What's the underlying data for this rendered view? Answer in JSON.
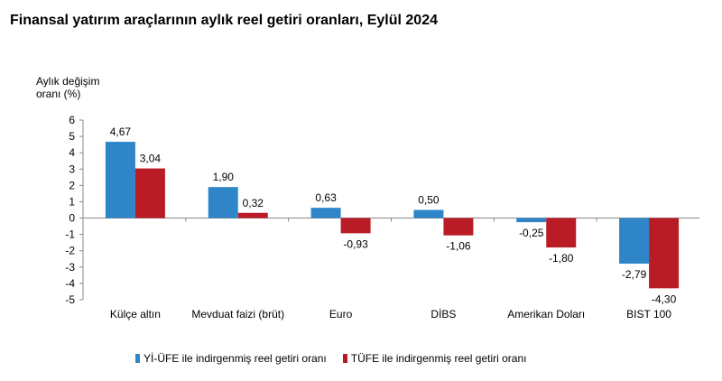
{
  "chart_data": {
    "type": "bar",
    "title": "Finansal yatırım araçlarının aylık reel getiri oranları, Eylül 2024",
    "ylabel_line1": "Aylık değişim",
    "ylabel_line2": "oranı (%)",
    "xlabel": "",
    "ylim": [
      -5,
      6
    ],
    "yticks": [
      6,
      5,
      4,
      3,
      2,
      1,
      0,
      -1,
      -2,
      -3,
      -4,
      -5
    ],
    "ytick_labels": [
      "6",
      "5",
      "4",
      "3",
      "2",
      "1",
      "0",
      "-1",
      "-2",
      "-3",
      "-4",
      "-5"
    ],
    "categories": [
      "Külçe altın",
      "Mevduat faizi (brüt)",
      "Euro",
      "DİBS",
      "Amerikan Doları",
      "BIST 100"
    ],
    "series": [
      {
        "name": "Yİ-ÜFE ile indirgenmiş reel getiri oranı",
        "color": "#2e86c9",
        "values": [
          4.67,
          1.9,
          0.63,
          0.5,
          -0.25,
          -2.79
        ],
        "labels": [
          "4,67",
          "1,90",
          "0,63",
          "0,50",
          "-0,25",
          "-2,79"
        ]
      },
      {
        "name": "TÜFE ile indirgenmiş reel getiri oranı",
        "color": "#b91c24",
        "values": [
          3.04,
          0.32,
          -0.93,
          -1.06,
          -1.8,
          -4.3
        ],
        "labels": [
          "3,04",
          "0,32",
          "-0,93",
          "-1,06",
          "-1,80",
          "-4,30"
        ]
      }
    ],
    "legend_position": "bottom"
  }
}
